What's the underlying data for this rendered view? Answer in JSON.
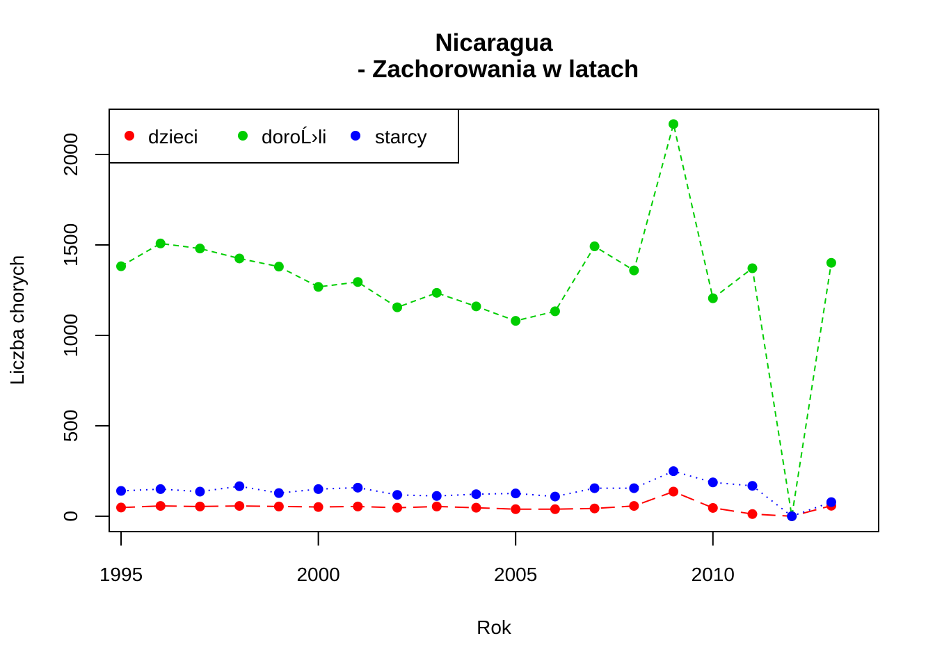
{
  "chart_data": {
    "type": "line",
    "title_line1": "Nicaragua",
    "title_line2": "- Zachorowania w latach",
    "xlabel": "Rok",
    "ylabel": "Liczba chorych",
    "x": [
      1995,
      1996,
      1997,
      1998,
      1999,
      2000,
      2001,
      2002,
      2003,
      2004,
      2005,
      2006,
      2007,
      2008,
      2009,
      2010,
      2011,
      2012,
      2013
    ],
    "xticks": [
      1995,
      2000,
      2005,
      2010
    ],
    "yticks": [
      0,
      500,
      1000,
      1500,
      2000
    ],
    "xlim": [
      1994.7,
      2014.2
    ],
    "ylim": [
      -85,
      2250
    ],
    "grid": false,
    "legend_position": "top-left",
    "series": [
      {
        "name": "dzieci",
        "color": "#ff0000",
        "line_style": "dashed",
        "values": [
          48,
          57,
          54,
          57,
          54,
          51,
          54,
          47,
          54,
          47,
          39,
          39,
          43,
          57,
          136,
          46,
          12,
          0,
          58
        ]
      },
      {
        "name": "doroĹ›li",
        "color": "#00cd00",
        "line_style": "short-dashed",
        "values": [
          1382,
          1508,
          1480,
          1425,
          1380,
          1268,
          1295,
          1155,
          1235,
          1160,
          1080,
          1133,
          1492,
          1359,
          2168,
          1205,
          1371,
          0,
          1401
        ]
      },
      {
        "name": "starcy",
        "color": "#0000ff",
        "line_style": "dotted",
        "values": [
          140,
          150,
          136,
          166,
          128,
          150,
          158,
          118,
          112,
          122,
          126,
          109,
          155,
          155,
          249,
          187,
          168,
          0,
          78
        ]
      }
    ]
  }
}
